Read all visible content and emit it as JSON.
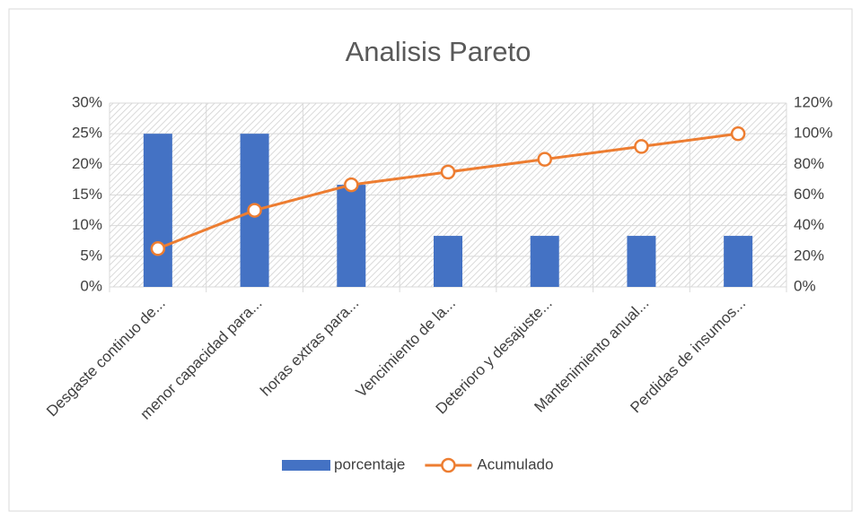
{
  "chart_data": {
    "type": "bar",
    "title": "Analisis Pareto",
    "categories": [
      "Desgaste continuo de...",
      "menor capacidad para...",
      "horas extras para...",
      "Vencimiento de la...",
      "Deterioro y desajuste...",
      "Mantenimiento anual...",
      "Perdidas  de insumos..."
    ],
    "series": [
      {
        "name": "porcentaje",
        "type": "bar",
        "color": "#4472c4",
        "values": [
          25,
          25,
          16.67,
          8.33,
          8.33,
          8.33,
          8.33
        ]
      },
      {
        "name": "Acumulado",
        "type": "line",
        "axis": "y2",
        "color": "#ed7d31",
        "values": [
          25,
          50,
          66.67,
          75,
          83.33,
          91.67,
          100
        ]
      }
    ],
    "ylim": [
      0,
      30
    ],
    "yticks": [
      {
        "value": 0,
        "label": "0%"
      },
      {
        "value": 5,
        "label": "5%"
      },
      {
        "value": 10,
        "label": "10%"
      },
      {
        "value": 15,
        "label": "15%"
      },
      {
        "value": 20,
        "label": "20%"
      },
      {
        "value": 25,
        "label": "25%"
      },
      {
        "value": 30,
        "label": "30%"
      }
    ],
    "y2lim": [
      0,
      120
    ],
    "y2ticks": [
      {
        "value": 0,
        "label": "0%"
      },
      {
        "value": 20,
        "label": "20%"
      },
      {
        "value": 40,
        "label": "40%"
      },
      {
        "value": 60,
        "label": "60%"
      },
      {
        "value": 80,
        "label": "80%"
      },
      {
        "value": 100,
        "label": "100%"
      },
      {
        "value": 120,
        "label": "120%"
      }
    ],
    "grid": true,
    "legend": "bottom"
  }
}
